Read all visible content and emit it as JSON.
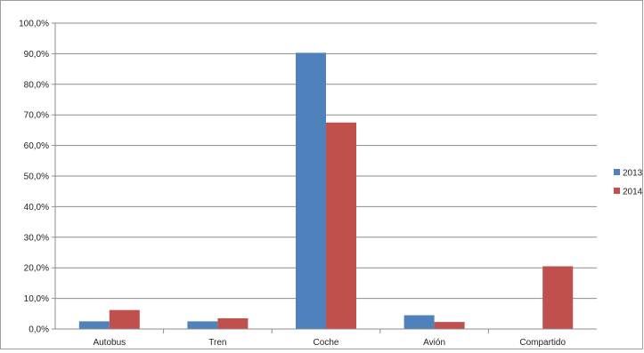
{
  "chart_data": {
    "type": "bar",
    "categories": [
      "Autobus",
      "Tren",
      "Coche",
      "Avión",
      "Compartido"
    ],
    "series": [
      {
        "name": "2013",
        "values": [
          2.5,
          2.5,
          90.3,
          4.5,
          0.0
        ],
        "color": "#4f81bd"
      },
      {
        "name": "2014",
        "values": [
          6.2,
          3.5,
          67.5,
          2.3,
          20.5
        ],
        "color": "#c0504d"
      }
    ],
    "y_ticks": [
      "0,0%",
      "10,0%",
      "20,0%",
      "30,0%",
      "40,0%",
      "50,0%",
      "60,0%",
      "70,0%",
      "80,0%",
      "90,0%",
      "100,0%"
    ],
    "ylim": [
      0,
      100
    ],
    "grid": true,
    "legend_position": "right",
    "title": "",
    "xlabel": "",
    "ylabel": ""
  }
}
